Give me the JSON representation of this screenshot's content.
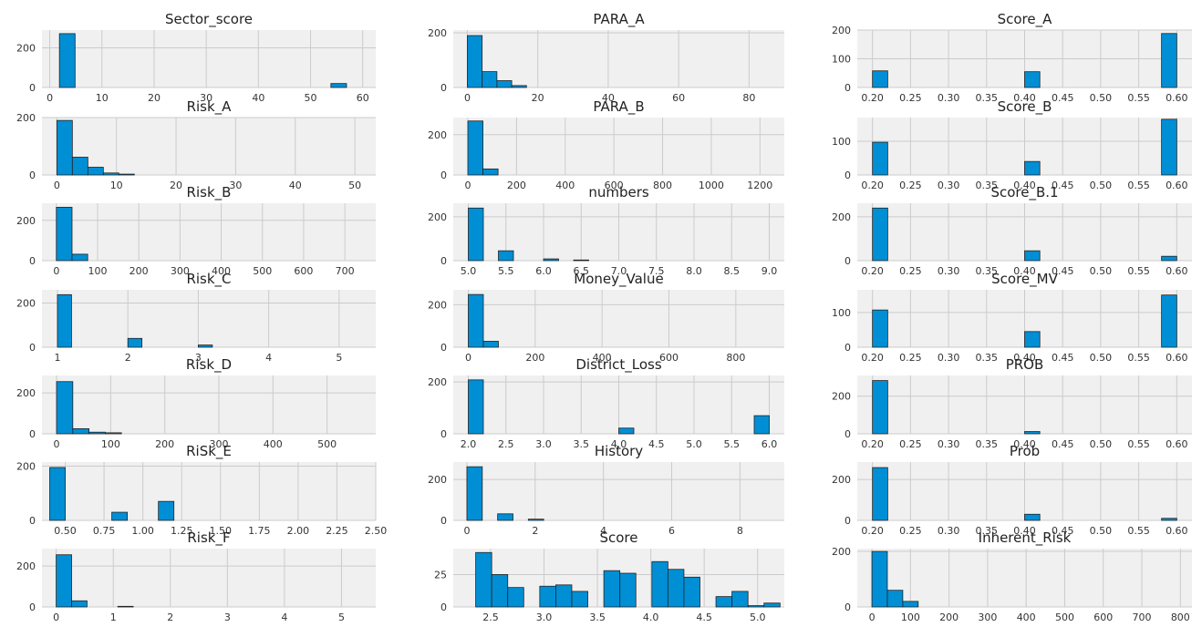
{
  "colors": {
    "bar": "#008fd5",
    "plot_background": "#f0f0f0",
    "grid": "#cbcbcb",
    "bar_edge": "#222222"
  },
  "chart_data": [
    {
      "type": "bar",
      "title": "Sector_score",
      "xlim": [
        -1.5,
        62.5
      ],
      "ylim": [
        0,
        290
      ],
      "xticks": [
        0,
        10,
        20,
        30,
        40,
        50,
        60
      ],
      "yticks": [
        0,
        200
      ],
      "bars": [
        {
          "x0": 1.85,
          "x1": 4.85,
          "y": 272
        },
        {
          "x0": 53.9,
          "x1": 56.9,
          "y": 20
        }
      ]
    },
    {
      "type": "bar",
      "title": "PARA_A",
      "xlim": [
        -4,
        90
      ],
      "ylim": [
        0,
        210
      ],
      "xticks": [
        0,
        20,
        40,
        60,
        80
      ],
      "yticks": [
        0,
        200
      ],
      "bars": [
        {
          "x0": 0,
          "x1": 4.2,
          "y": 190
        },
        {
          "x0": 4.2,
          "x1": 8.4,
          "y": 58
        },
        {
          "x0": 8.4,
          "x1": 12.6,
          "y": 25
        },
        {
          "x0": 12.6,
          "x1": 16.8,
          "y": 7
        }
      ]
    },
    {
      "type": "bar",
      "title": "Score_A",
      "xlim": [
        0.18,
        0.62
      ],
      "ylim": [
        0,
        200
      ],
      "xticks": [
        "0.20",
        "0.25",
        "0.30",
        "0.35",
        "0.40",
        "0.45",
        "0.50",
        "0.55",
        "0.60"
      ],
      "yticks": [
        0,
        100,
        200
      ],
      "bars": [
        {
          "x0": 0.2,
          "x1": 0.22,
          "y": 58
        },
        {
          "x0": 0.4,
          "x1": 0.42,
          "y": 55
        },
        {
          "x0": 0.58,
          "x1": 0.6,
          "y": 188
        }
      ]
    },
    {
      "type": "bar",
      "title": "Risk_A",
      "xlim": [
        -2.5,
        53.5
      ],
      "ylim": [
        0,
        200
      ],
      "xticks": [
        0,
        10,
        20,
        30,
        40,
        50
      ],
      "yticks": [
        0,
        200
      ],
      "bars": [
        {
          "x0": 0,
          "x1": 2.6,
          "y": 190
        },
        {
          "x0": 2.6,
          "x1": 5.2,
          "y": 62
        },
        {
          "x0": 5.2,
          "x1": 7.8,
          "y": 27
        },
        {
          "x0": 7.8,
          "x1": 10.4,
          "y": 7
        },
        {
          "x0": 10.4,
          "x1": 13,
          "y": 3
        }
      ]
    },
    {
      "type": "bar",
      "title": "PARA_B",
      "xlim": [
        -60,
        1300
      ],
      "ylim": [
        0,
        285
      ],
      "xticks": [
        0,
        200,
        400,
        600,
        800,
        1000,
        1200
      ],
      "yticks": [
        0,
        200
      ],
      "bars": [
        {
          "x0": 0,
          "x1": 62,
          "y": 268
        },
        {
          "x0": 62,
          "x1": 124,
          "y": 30
        }
      ]
    },
    {
      "type": "bar",
      "title": "Score_B",
      "xlim": [
        0.18,
        0.62
      ],
      "ylim": [
        0,
        170
      ],
      "xticks": [
        "0.20",
        "0.25",
        "0.30",
        "0.35",
        "0.40",
        "0.45",
        "0.50",
        "0.55",
        "0.60"
      ],
      "yticks": [
        0,
        100
      ],
      "bars": [
        {
          "x0": 0.2,
          "x1": 0.22,
          "y": 97
        },
        {
          "x0": 0.4,
          "x1": 0.42,
          "y": 40
        },
        {
          "x0": 0.58,
          "x1": 0.6,
          "y": 165
        }
      ]
    },
    {
      "type": "bar",
      "title": "Risk_B",
      "xlim": [
        -35,
        775
      ],
      "ylim": [
        0,
        285
      ],
      "xticks": [
        0,
        100,
        200,
        300,
        400,
        500,
        600,
        700
      ],
      "yticks": [
        0,
        200
      ],
      "bars": [
        {
          "x0": 0,
          "x1": 38,
          "y": 265
        },
        {
          "x0": 38,
          "x1": 76,
          "y": 32
        }
      ]
    },
    {
      "type": "bar",
      "title": "numbers",
      "xlim": [
        4.8,
        9.2
      ],
      "ylim": [
        0,
        262
      ],
      "xticks": [
        "5.0",
        "5.5",
        "6.0",
        "6.5",
        "7.0",
        "7.5",
        "8.0",
        "8.5",
        "9.0"
      ],
      "yticks": [
        0,
        200
      ],
      "bars": [
        {
          "x0": 5.0,
          "x1": 5.2,
          "y": 240
        },
        {
          "x0": 5.4,
          "x1": 5.6,
          "y": 45
        },
        {
          "x0": 6.0,
          "x1": 6.2,
          "y": 8
        },
        {
          "x0": 6.4,
          "x1": 6.6,
          "y": 3
        }
      ]
    },
    {
      "type": "bar",
      "title": "Score_B.1",
      "xlim": [
        0.18,
        0.62
      ],
      "ylim": [
        0,
        262
      ],
      "xticks": [
        "0.20",
        "0.25",
        "0.30",
        "0.35",
        "0.40",
        "0.45",
        "0.50",
        "0.55",
        "0.60"
      ],
      "yticks": [
        0,
        200
      ],
      "bars": [
        {
          "x0": 0.2,
          "x1": 0.22,
          "y": 240
        },
        {
          "x0": 0.4,
          "x1": 0.42,
          "y": 45
        },
        {
          "x0": 0.58,
          "x1": 0.6,
          "y": 20
        }
      ]
    },
    {
      "type": "bar",
      "title": "Risk_C",
      "xlim": [
        0.78,
        5.52
      ],
      "ylim": [
        0,
        260
      ],
      "xticks": [
        1,
        2,
        3,
        4,
        5
      ],
      "yticks": [
        0,
        200
      ],
      "bars": [
        {
          "x0": 1.0,
          "x1": 1.2,
          "y": 238
        },
        {
          "x0": 2.0,
          "x1": 2.2,
          "y": 40
        },
        {
          "x0": 3.0,
          "x1": 3.2,
          "y": 10
        }
      ]
    },
    {
      "type": "bar",
      "title": "Money_Value",
      "xlim": [
        -45,
        945
      ],
      "ylim": [
        0,
        270
      ],
      "xticks": [
        0,
        200,
        400,
        600,
        800
      ],
      "yticks": [
        0,
        200
      ],
      "bars": [
        {
          "x0": 0,
          "x1": 45,
          "y": 248
        },
        {
          "x0": 45,
          "x1": 90,
          "y": 28
        }
      ]
    },
    {
      "type": "bar",
      "title": "Score_MV",
      "xlim": [
        0.18,
        0.62
      ],
      "ylim": [
        0,
        165
      ],
      "xticks": [
        "0.20",
        "0.25",
        "0.30",
        "0.35",
        "0.40",
        "0.45",
        "0.50",
        "0.55",
        "0.60"
      ],
      "yticks": [
        0,
        100
      ],
      "bars": [
        {
          "x0": 0.2,
          "x1": 0.22,
          "y": 107
        },
        {
          "x0": 0.4,
          "x1": 0.42,
          "y": 45
        },
        {
          "x0": 0.58,
          "x1": 0.6,
          "y": 150
        }
      ]
    },
    {
      "type": "bar",
      "title": "Risk_D",
      "xlim": [
        -27,
        590
      ],
      "ylim": [
        0,
        285
      ],
      "xticks": [
        0,
        100,
        200,
        300,
        400,
        500
      ],
      "yticks": [
        0,
        200
      ],
      "bars": [
        {
          "x0": 0,
          "x1": 30,
          "y": 255
        },
        {
          "x0": 30,
          "x1": 60,
          "y": 25
        },
        {
          "x0": 60,
          "x1": 90,
          "y": 8
        },
        {
          "x0": 90,
          "x1": 120,
          "y": 5
        }
      ]
    },
    {
      "type": "bar",
      "title": "District_Loss",
      "xlim": [
        1.8,
        6.2
      ],
      "ylim": [
        0,
        225
      ],
      "xticks": [
        "2.0",
        "2.5",
        "3.0",
        "3.5",
        "4.0",
        "4.5",
        "5.0",
        "5.5",
        "6.0"
      ],
      "yticks": [
        0,
        200
      ],
      "bars": [
        {
          "x0": 2.0,
          "x1": 2.2,
          "y": 208
        },
        {
          "x0": 4.0,
          "x1": 4.2,
          "y": 22
        },
        {
          "x0": 5.8,
          "x1": 6.0,
          "y": 70
        }
      ]
    },
    {
      "type": "bar",
      "title": "PROB",
      "xlim": [
        0.18,
        0.62
      ],
      "ylim": [
        0,
        310
      ],
      "xticks": [
        "0.20",
        "0.25",
        "0.30",
        "0.35",
        "0.40",
        "0.45",
        "0.50",
        "0.55",
        "0.60"
      ],
      "yticks": [
        0,
        200
      ],
      "bars": [
        {
          "x0": 0.2,
          "x1": 0.22,
          "y": 283
        },
        {
          "x0": 0.4,
          "x1": 0.42,
          "y": 12
        }
      ]
    },
    {
      "type": "bar",
      "title": "RiSk_E",
      "xlim": [
        0.35,
        2.5
      ],
      "ylim": [
        0,
        215
      ],
      "xticks": [
        "0.50",
        "0.75",
        "1.00",
        "1.25",
        "1.50",
        "1.75",
        "2.00",
        "2.25",
        "2.50"
      ],
      "yticks": [
        0,
        200
      ],
      "bars": [
        {
          "x0": 0.4,
          "x1": 0.5,
          "y": 195
        },
        {
          "x0": 0.8,
          "x1": 0.9,
          "y": 30
        },
        {
          "x0": 1.1,
          "x1": 1.2,
          "y": 70
        }
      ]
    },
    {
      "type": "bar",
      "title": "History",
      "xlim": [
        -0.4,
        9.3
      ],
      "ylim": [
        0,
        285
      ],
      "xticks": [
        0,
        2,
        4,
        6,
        8
      ],
      "yticks": [
        0,
        200
      ],
      "bars": [
        {
          "x0": 0,
          "x1": 0.45,
          "y": 262
        },
        {
          "x0": 0.9,
          "x1": 1.35,
          "y": 32
        },
        {
          "x0": 1.8,
          "x1": 2.25,
          "y": 6
        }
      ]
    },
    {
      "type": "bar",
      "title": "Prob",
      "xlim": [
        0.18,
        0.62
      ],
      "ylim": [
        0,
        285
      ],
      "xticks": [
        "0.20",
        "0.25",
        "0.30",
        "0.35",
        "0.40",
        "0.45",
        "0.50",
        "0.55",
        "0.60"
      ],
      "yticks": [
        0,
        200
      ],
      "bars": [
        {
          "x0": 0.2,
          "x1": 0.22,
          "y": 258
        },
        {
          "x0": 0.4,
          "x1": 0.42,
          "y": 30
        },
        {
          "x0": 0.58,
          "x1": 0.6,
          "y": 10
        }
      ]
    },
    {
      "type": "bar",
      "title": "Risk_F",
      "xlim": [
        -0.25,
        5.6
      ],
      "ylim": [
        0,
        285
      ],
      "xticks": [
        0,
        1,
        2,
        3,
        4,
        5
      ],
      "yticks": [
        0,
        200
      ],
      "bars": [
        {
          "x0": 0,
          "x1": 0.27,
          "y": 255
        },
        {
          "x0": 0.27,
          "x1": 0.54,
          "y": 30
        },
        {
          "x0": 1.08,
          "x1": 1.35,
          "y": 3
        }
      ]
    },
    {
      "type": "bar",
      "title": "Score",
      "xlim": [
        2.15,
        5.25
      ],
      "ylim": [
        0,
        45
      ],
      "xticks": [
        "2.5",
        "3.0",
        "3.5",
        "4.0",
        "4.5",
        "5.0"
      ],
      "yticks": [
        0,
        25
      ],
      "bars": [
        {
          "x0": 2.36,
          "x1": 2.51,
          "y": 42
        },
        {
          "x0": 2.51,
          "x1": 2.66,
          "y": 25
        },
        {
          "x0": 2.66,
          "x1": 2.81,
          "y": 15
        },
        {
          "x0": 2.96,
          "x1": 3.11,
          "y": 16
        },
        {
          "x0": 3.11,
          "x1": 3.26,
          "y": 17
        },
        {
          "x0": 3.26,
          "x1": 3.41,
          "y": 12
        },
        {
          "x0": 3.56,
          "x1": 3.71,
          "y": 28
        },
        {
          "x0": 3.71,
          "x1": 3.86,
          "y": 26
        },
        {
          "x0": 4.01,
          "x1": 4.16,
          "y": 35
        },
        {
          "x0": 4.16,
          "x1": 4.31,
          "y": 29
        },
        {
          "x0": 4.31,
          "x1": 4.46,
          "y": 23
        },
        {
          "x0": 4.61,
          "x1": 4.76,
          "y": 8
        },
        {
          "x0": 4.76,
          "x1": 4.91,
          "y": 12
        },
        {
          "x0": 4.91,
          "x1": 5.06,
          "y": 1
        },
        {
          "x0": 5.06,
          "x1": 5.21,
          "y": 3
        }
      ]
    },
    {
      "type": "bar",
      "title": "Inherent_Risk",
      "xlim": [
        -38,
        830
      ],
      "ylim": [
        0,
        210
      ],
      "xticks": [
        0,
        100,
        200,
        300,
        400,
        500,
        600,
        700,
        800
      ],
      "yticks": [
        0,
        200
      ],
      "bars": [
        {
          "x0": 0,
          "x1": 40,
          "y": 200
        },
        {
          "x0": 40,
          "x1": 80,
          "y": 60
        },
        {
          "x0": 80,
          "x1": 120,
          "y": 20
        }
      ]
    }
  ]
}
